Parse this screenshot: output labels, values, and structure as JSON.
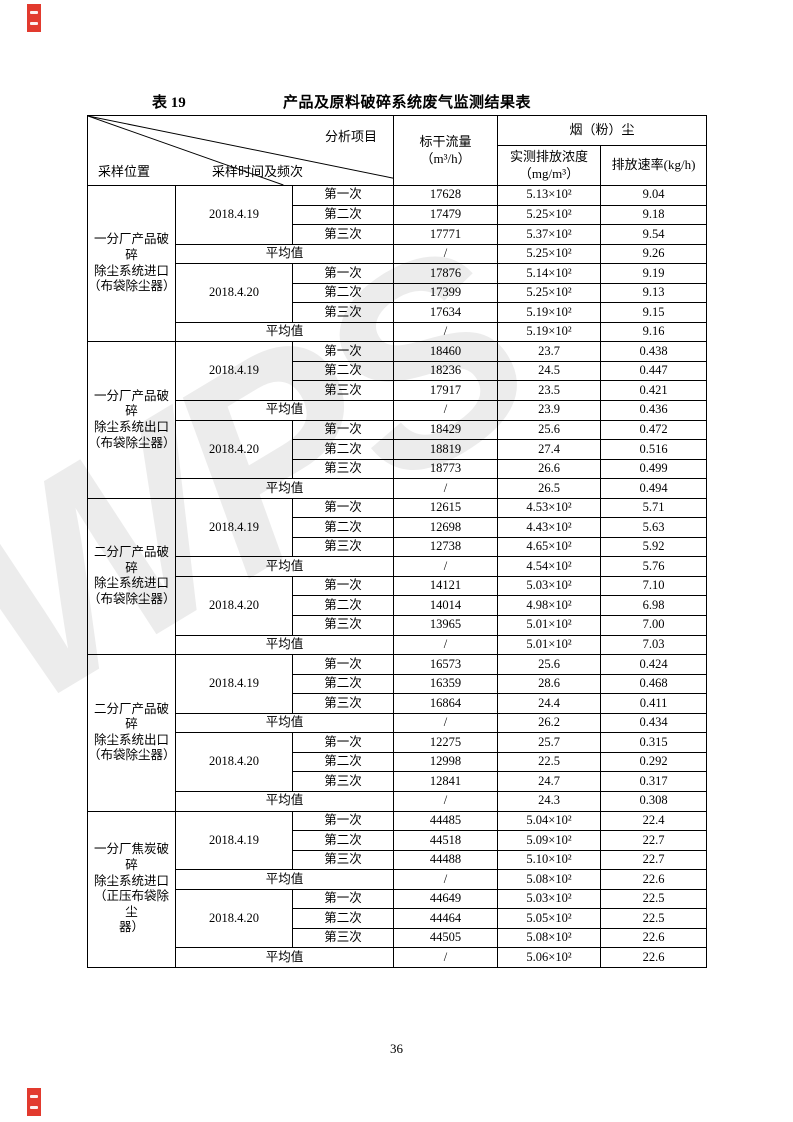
{
  "page": {
    "table_label": "表 19",
    "title": "产品及原料破碎系统废气监测结果表",
    "page_number": "36",
    "watermark_text": "WPS",
    "seal_color": "#e23a2e"
  },
  "table": {
    "corner": {
      "top_right_label": "分析项目",
      "middle_label": "采样时间及频次",
      "bottom_left_label": "采样位置"
    },
    "columns": {
      "flow_header": "标干流量\n（m³/h）",
      "dust_group_header": "烟（粉）尘",
      "concentration_header": "实测排放浓度\n（mg/m³）",
      "rate_header": "排放速率(kg/h)"
    },
    "measurement_labels": [
      "第一次",
      "第二次",
      "第三次"
    ],
    "average_label": "平均值",
    "blocks": [
      {
        "location": "一分厂产品破碎\n除尘系统进口\n（布袋除尘器）",
        "groups": [
          {
            "date": "2018.4.19",
            "rows": [
              [
                "17628",
                "5.13×10²",
                "9.04"
              ],
              [
                "17479",
                "5.25×10²",
                "9.18"
              ],
              [
                "17771",
                "5.37×10²",
                "9.54"
              ]
            ],
            "avg": [
              "/",
              "5.25×10²",
              "9.26"
            ]
          },
          {
            "date": "2018.4.20",
            "rows": [
              [
                "17876",
                "5.14×10²",
                "9.19"
              ],
              [
                "17399",
                "5.25×10²",
                "9.13"
              ],
              [
                "17634",
                "5.19×10²",
                "9.15"
              ]
            ],
            "avg": [
              "/",
              "5.19×10²",
              "9.16"
            ]
          }
        ]
      },
      {
        "location": "一分厂产品破碎\n除尘系统出口\n（布袋除尘器）",
        "groups": [
          {
            "date": "2018.4.19",
            "rows": [
              [
                "18460",
                "23.7",
                "0.438"
              ],
              [
                "18236",
                "24.5",
                "0.447"
              ],
              [
                "17917",
                "23.5",
                "0.421"
              ]
            ],
            "avg": [
              "/",
              "23.9",
              "0.436"
            ]
          },
          {
            "date": "2018.4.20",
            "rows": [
              [
                "18429",
                "25.6",
                "0.472"
              ],
              [
                "18819",
                "27.4",
                "0.516"
              ],
              [
                "18773",
                "26.6",
                "0.499"
              ]
            ],
            "avg": [
              "/",
              "26.5",
              "0.494"
            ]
          }
        ]
      },
      {
        "location": "二分厂产品破碎\n除尘系统进口\n（布袋除尘器）",
        "groups": [
          {
            "date": "2018.4.19",
            "rows": [
              [
                "12615",
                "4.53×10²",
                "5.71"
              ],
              [
                "12698",
                "4.43×10²",
                "5.63"
              ],
              [
                "12738",
                "4.65×10²",
                "5.92"
              ]
            ],
            "avg": [
              "/",
              "4.54×10²",
              "5.76"
            ]
          },
          {
            "date": "2018.4.20",
            "rows": [
              [
                "14121",
                "5.03×10²",
                "7.10"
              ],
              [
                "14014",
                "4.98×10²",
                "6.98"
              ],
              [
                "13965",
                "5.01×10²",
                "7.00"
              ]
            ],
            "avg": [
              "/",
              "5.01×10²",
              "7.03"
            ]
          }
        ]
      },
      {
        "location": "二分厂产品破碎\n除尘系统出口\n（布袋除尘器）",
        "groups": [
          {
            "date": "2018.4.19",
            "rows": [
              [
                "16573",
                "25.6",
                "0.424"
              ],
              [
                "16359",
                "28.6",
                "0.468"
              ],
              [
                "16864",
                "24.4",
                "0.411"
              ]
            ],
            "avg": [
              "/",
              "26.2",
              "0.434"
            ]
          },
          {
            "date": "2018.4.20",
            "rows": [
              [
                "12275",
                "25.7",
                "0.315"
              ],
              [
                "12998",
                "22.5",
                "0.292"
              ],
              [
                "12841",
                "24.7",
                "0.317"
              ]
            ],
            "avg": [
              "/",
              "24.3",
              "0.308"
            ]
          }
        ]
      },
      {
        "location": "一分厂焦炭破碎\n除尘系统进口\n（正压布袋除尘\n器）",
        "groups": [
          {
            "date": "2018.4.19",
            "rows": [
              [
                "44485",
                "5.04×10²",
                "22.4"
              ],
              [
                "44518",
                "5.09×10²",
                "22.7"
              ],
              [
                "44488",
                "5.10×10²",
                "22.7"
              ]
            ],
            "avg": [
              "/",
              "5.08×10²",
              "22.6"
            ]
          },
          {
            "date": "2018.4.20",
            "rows": [
              [
                "44649",
                "5.03×10²",
                "22.5"
              ],
              [
                "44464",
                "5.05×10²",
                "22.5"
              ],
              [
                "44505",
                "5.08×10²",
                "22.6"
              ]
            ],
            "avg": [
              "/",
              "5.06×10²",
              "22.6"
            ]
          }
        ]
      }
    ]
  }
}
